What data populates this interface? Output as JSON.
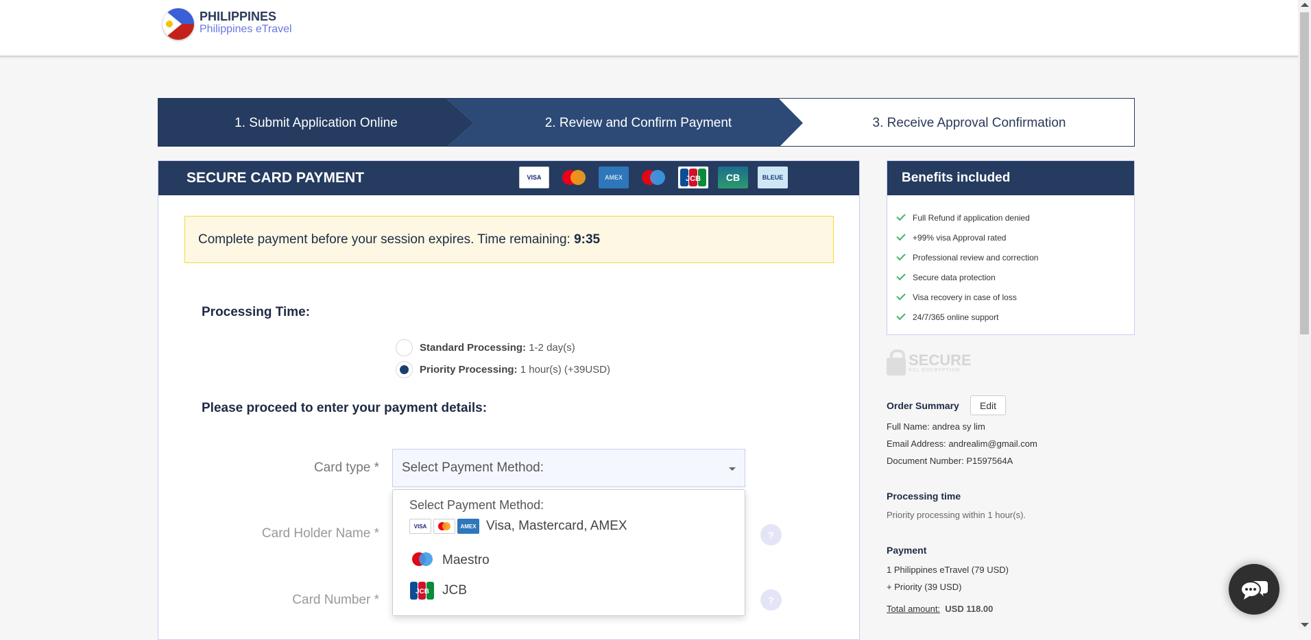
{
  "header": {
    "logo_title": "PHILIPPINES",
    "logo_subtitle": "Philippines eTravel"
  },
  "steps": [
    {
      "label": "1. Submit Application Online"
    },
    {
      "label": "2. Review and Confirm Payment"
    },
    {
      "label": "3. Receive Approval Confirmation"
    }
  ],
  "payment": {
    "title": "SECURE CARD PAYMENT",
    "brands": [
      "VISA",
      "Mastercard",
      "AMEX",
      "Maestro",
      "JCB",
      "CB",
      "BLEUE"
    ],
    "alert_text": "Complete payment before your session expires. Time remaining:",
    "time_remaining": "9:35",
    "processing_label": "Processing Time:",
    "options": [
      {
        "name": "Standard Processing:",
        "detail": "1-2 day(s)",
        "selected": false
      },
      {
        "name": "Priority Processing:",
        "detail": "1 hour(s) (+39USD)",
        "selected": true
      }
    ],
    "details_label": "Please proceed to enter your payment details:",
    "card_type_label": "Card type *",
    "card_type_value": "Select Payment Method:",
    "card_holder_label": "Card Holder Name *",
    "card_number_label": "Card Number *",
    "help_glyph": "?",
    "dropdown": {
      "header": "Select Payment Method:",
      "items": [
        {
          "label": "Visa, Mastercard, AMEX"
        },
        {
          "label": "Maestro"
        },
        {
          "label": "JCB"
        }
      ]
    }
  },
  "benefits": {
    "title": "Benefits included",
    "items": [
      "Full Refund if application denied",
      "+99% visa Approval rated",
      "Professional review and correction",
      "Secure data protection",
      "Visa recovery in case of loss",
      "24/7/365 online support"
    ]
  },
  "secure_badge": {
    "title": "SECURE",
    "subtitle": "SSL ENCRYPTION"
  },
  "order": {
    "title": "Order Summary",
    "edit": "Edit",
    "full_name": "Full Name: andrea sy lim",
    "email": "Email Address: andrealim@gmail.com",
    "document": "Document Number: P1597564A",
    "processing_title": "Processing time",
    "processing_text": "Priority processing within 1 hour(s).",
    "payment_title": "Payment",
    "line1": "1 Philippines eTravel (79 USD)",
    "line2": "+ Priority (39 USD)",
    "total_label": "Total amount:",
    "total_value": "USD 118.00"
  },
  "colors": {
    "navy": "#253b60",
    "step2": "#2d4a76",
    "alert_bg": "#fdf7e3",
    "alert_border": "#f0dc3c",
    "check": "#45b069"
  }
}
